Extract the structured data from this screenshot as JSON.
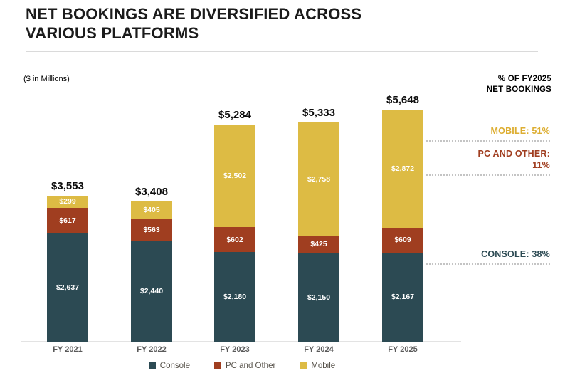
{
  "header": {
    "title_line1": "NET BOOKINGS ARE DIVERSIFIED ACROSS",
    "title_line2": "VARIOUS PLATFORMS",
    "units_note": "($ in Millions)",
    "right_header_line1": "% OF FY2025",
    "right_header_line2": "NET BOOKINGS"
  },
  "chart_data": {
    "type": "bar",
    "stacked": true,
    "title": "Net bookings are diversified across various platforms",
    "units": "$ in Millions",
    "categories": [
      "FY 2021",
      "FY 2022",
      "FY 2023",
      "FY 2024",
      "FY 2025"
    ],
    "series": [
      {
        "name": "Console",
        "color": "#2c4a53",
        "values": [
          2637,
          2440,
          2180,
          2150,
          2167
        ],
        "labels": [
          "$2,637",
          "$2,440",
          "$2,180",
          "$2,150",
          "$2,167"
        ]
      },
      {
        "name": "PC and Other",
        "color": "#a03e20",
        "values": [
          617,
          563,
          602,
          425,
          609
        ],
        "labels": [
          "$617",
          "$563",
          "$602",
          "$425",
          "$609"
        ]
      },
      {
        "name": "Mobile",
        "color": "#ddbb44",
        "values": [
          299,
          405,
          2502,
          2758,
          2872
        ],
        "labels": [
          "$299",
          "$405",
          "$2,502",
          "$2,758",
          "$2,872"
        ]
      }
    ],
    "totals": [
      3553,
      3408,
      5284,
      5333,
      5648
    ],
    "total_labels": [
      "$3,553",
      "$3,408",
      "$5,284",
      "$5,333",
      "$5,648"
    ],
    "legend_position": "bottom",
    "grid": false
  },
  "annotations": [
    {
      "label": "MOBILE: 51%",
      "color": "#ddae32"
    },
    {
      "label": "PC AND OTHER: 11%",
      "color": "#a03e20"
    },
    {
      "label": "CONSOLE: 38%",
      "color": "#2c4a53"
    }
  ]
}
